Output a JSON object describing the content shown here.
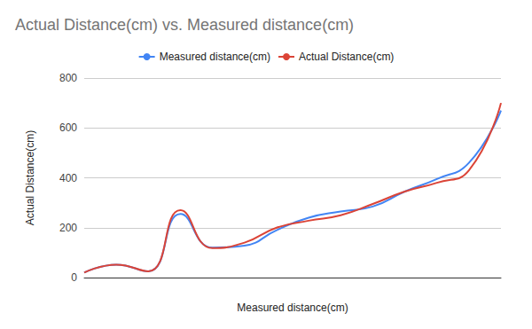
{
  "chart_data": {
    "type": "line",
    "title": "Actual Distance(cm) vs. Measured distance(cm)",
    "x_label": "Measured distance(cm)",
    "y_label": "Actual Distance(cm)",
    "categories": [
      null,
      null,
      null,
      null,
      null,
      null,
      null,
      null,
      null,
      null,
      null,
      null,
      null,
      null
    ],
    "series": [
      {
        "name": "Measured distance(cm)",
        "color": "#4285f4",
        "values": [
          20,
          52,
          25,
          255,
          120,
          128,
          190,
          240,
          265,
          285,
          345,
          395,
          460,
          670
        ]
      },
      {
        "name": "Actual Distance(cm)",
        "color": "#db4437",
        "values": [
          20,
          52,
          25,
          270,
          118,
          140,
          200,
          228,
          250,
          295,
          345,
          380,
          430,
          700
        ]
      }
    ],
    "ylim": [
      0,
      800
    ],
    "yticks": [
      0,
      200,
      400,
      600,
      800
    ],
    "grid": true,
    "legend": "top",
    "tick_labels": "y",
    "line_style": "smooth"
  }
}
